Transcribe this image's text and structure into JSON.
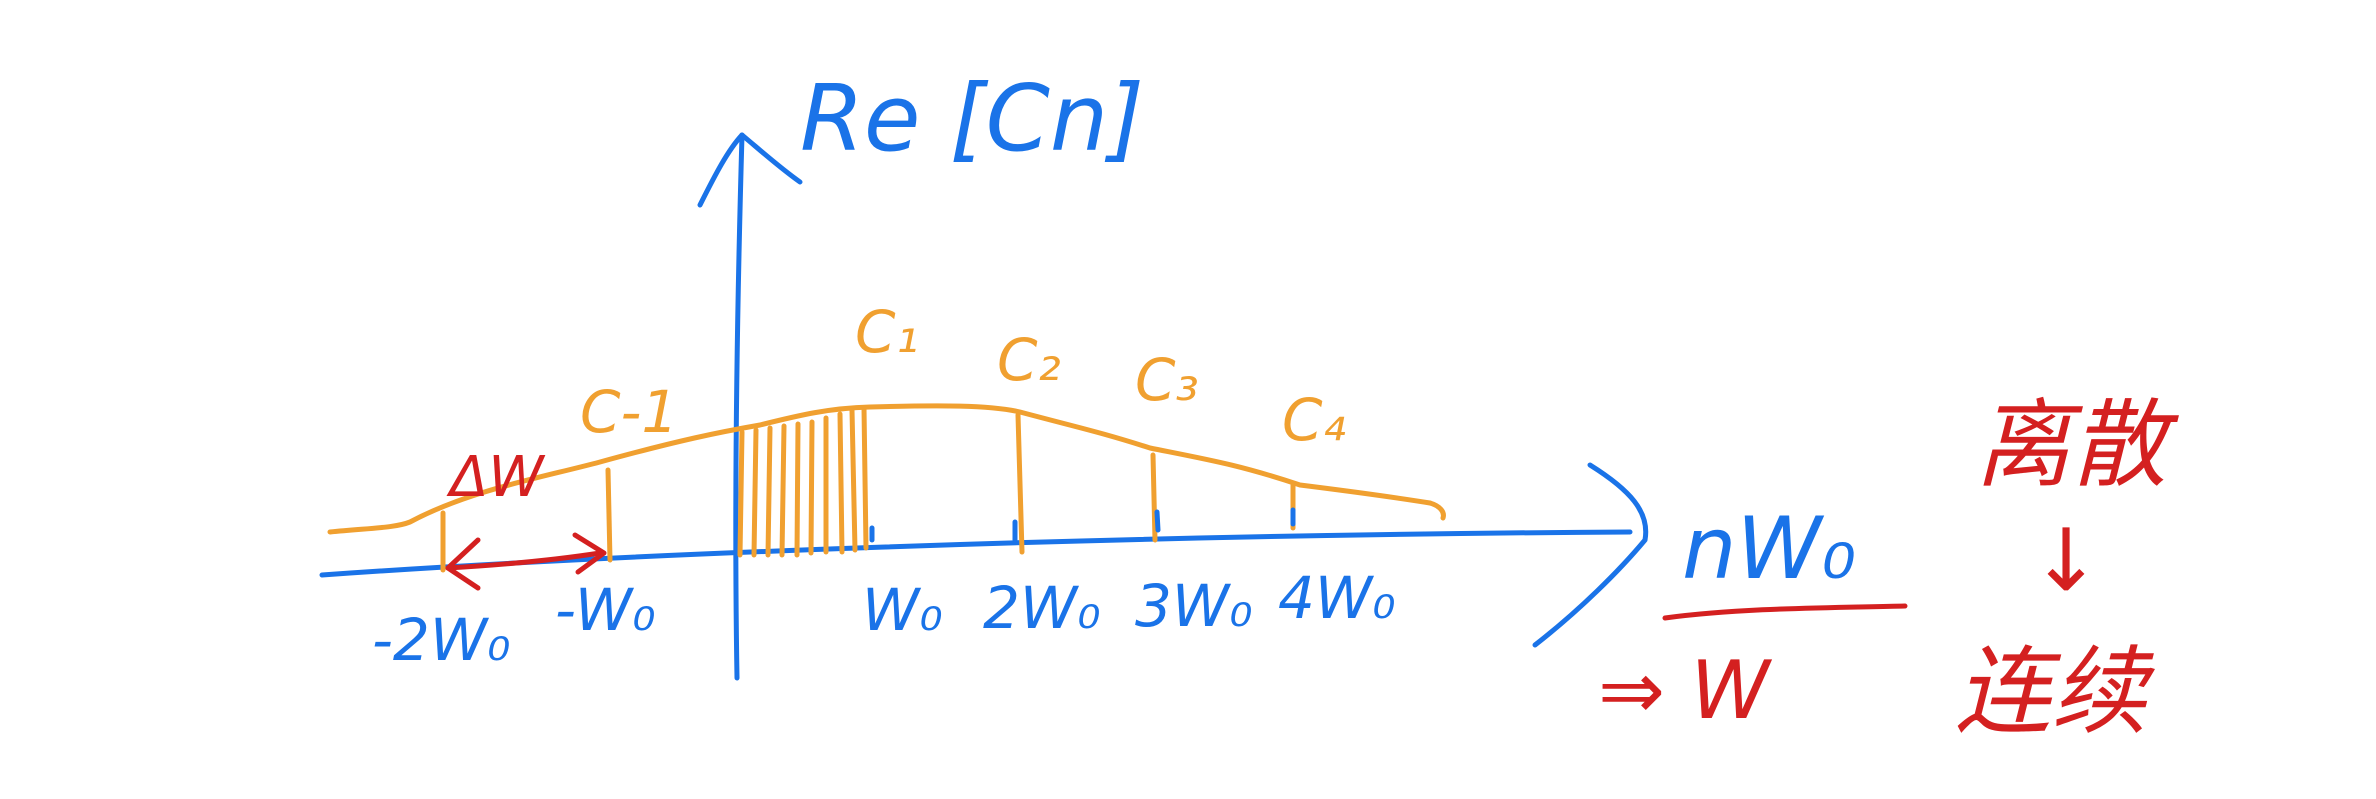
{
  "colors": {
    "axis": "#1a73e8",
    "curve": "#f0a030",
    "annotation": "#d42020",
    "background": "#ffffff"
  },
  "axis": {
    "y_label": "Re [Cn]",
    "x_label": "nW₀"
  },
  "tick_labels": [
    {
      "id": "neg2",
      "text": "-2W₀"
    },
    {
      "id": "neg1",
      "text": "-W₀"
    },
    {
      "id": "pos1",
      "text": "W₀"
    },
    {
      "id": "pos2",
      "text": "2W₀"
    },
    {
      "id": "pos3",
      "text": "3W₀"
    },
    {
      "id": "pos4",
      "text": "4W₀"
    }
  ],
  "coefficients": [
    {
      "id": "cm1",
      "text": "C-1"
    },
    {
      "id": "c1",
      "text": "C₁"
    },
    {
      "id": "c2",
      "text": "C₂"
    },
    {
      "id": "c3",
      "text": "C₃"
    },
    {
      "id": "c4",
      "text": "C₄"
    }
  ],
  "annotations": {
    "delta_w": "ΔW",
    "arrow_to_w": "⇒ W",
    "discrete": "离散",
    "down_arrow": "↓",
    "continuous": "连续"
  }
}
